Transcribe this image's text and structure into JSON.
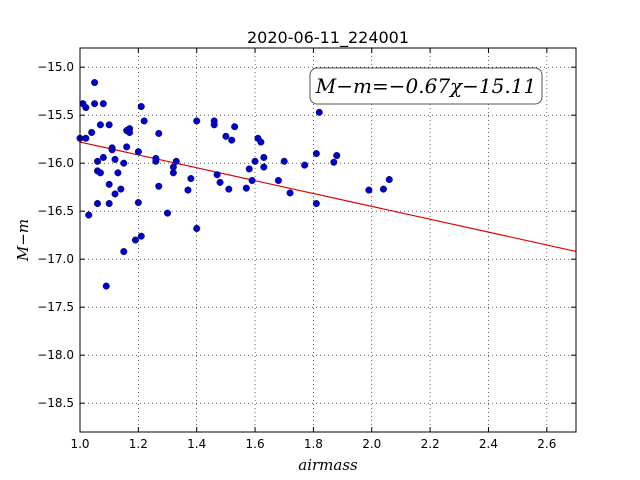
{
  "chart_data": {
    "type": "scatter",
    "title": "2020-06-11_224001",
    "xlabel": "airmass",
    "ylabel": "M−m",
    "xlim": [
      1.0,
      2.7
    ],
    "ylim": [
      -18.8,
      -14.8
    ],
    "x_ticks": [
      1.0,
      1.2,
      1.4,
      1.6,
      1.8,
      2.0,
      2.2,
      2.4,
      2.6
    ],
    "x_tick_labels": [
      "1.0",
      "1.2",
      "1.4",
      "1.6",
      "1.8",
      "2.0",
      "2.2",
      "2.4",
      "2.6"
    ],
    "y_ticks": [
      -15.0,
      -15.5,
      -16.0,
      -16.5,
      -17.0,
      -17.5,
      -18.0,
      -18.5
    ],
    "y_tick_labels": [
      "−15.0",
      "−15.5",
      "−16.0",
      "−16.5",
      "−17.0",
      "−17.5",
      "−18.0",
      "−18.5"
    ],
    "grid": true,
    "annotation": "M−m=−0.67χ−15.11",
    "fit": {
      "slope": -0.67,
      "intercept": -15.11,
      "color": "#dd0000"
    },
    "marker_color": "#0000cc",
    "points": [
      [
        1.0,
        -15.74
      ],
      [
        1.01,
        -15.38
      ],
      [
        1.02,
        -15.42
      ],
      [
        1.02,
        -15.74
      ],
      [
        1.03,
        -16.54
      ],
      [
        1.04,
        -15.68
      ],
      [
        1.05,
        -15.16
      ],
      [
        1.05,
        -15.38
      ],
      [
        1.06,
        -16.08
      ],
      [
        1.06,
        -15.98
      ],
      [
        1.06,
        -16.42
      ],
      [
        1.07,
        -15.6
      ],
      [
        1.07,
        -16.1
      ],
      [
        1.08,
        -15.38
      ],
      [
        1.08,
        -15.94
      ],
      [
        1.09,
        -17.28
      ],
      [
        1.1,
        -15.6
      ],
      [
        1.1,
        -16.22
      ],
      [
        1.1,
        -16.42
      ],
      [
        1.11,
        -15.84
      ],
      [
        1.11,
        -15.86
      ],
      [
        1.12,
        -15.96
      ],
      [
        1.12,
        -16.32
      ],
      [
        1.13,
        -16.1
      ],
      [
        1.14,
        -16.27
      ],
      [
        1.15,
        -16.92
      ],
      [
        1.15,
        -16.0
      ],
      [
        1.16,
        -15.66
      ],
      [
        1.16,
        -15.83
      ],
      [
        1.17,
        -15.64
      ],
      [
        1.17,
        -15.68
      ],
      [
        1.19,
        -16.8
      ],
      [
        1.2,
        -16.41
      ],
      [
        1.2,
        -15.88
      ],
      [
        1.21,
        -15.41
      ],
      [
        1.21,
        -16.76
      ],
      [
        1.22,
        -15.56
      ],
      [
        1.26,
        -15.98
      ],
      [
        1.26,
        -15.95
      ],
      [
        1.27,
        -16.24
      ],
      [
        1.27,
        -15.69
      ],
      [
        1.3,
        -16.52
      ],
      [
        1.32,
        -16.1
      ],
      [
        1.32,
        -16.04
      ],
      [
        1.33,
        -15.98
      ],
      [
        1.37,
        -16.28
      ],
      [
        1.38,
        -16.16
      ],
      [
        1.4,
        -16.68
      ],
      [
        1.4,
        -15.56
      ],
      [
        1.46,
        -15.6
      ],
      [
        1.46,
        -15.56
      ],
      [
        1.47,
        -16.12
      ],
      [
        1.48,
        -16.2
      ],
      [
        1.5,
        -15.72
      ],
      [
        1.51,
        -16.27
      ],
      [
        1.52,
        -15.76
      ],
      [
        1.53,
        -15.62
      ],
      [
        1.57,
        -16.26
      ],
      [
        1.58,
        -16.06
      ],
      [
        1.59,
        -16.18
      ],
      [
        1.6,
        -15.98
      ],
      [
        1.61,
        -15.74
      ],
      [
        1.62,
        -15.78
      ],
      [
        1.63,
        -15.94
      ],
      [
        1.63,
        -16.04
      ],
      [
        1.68,
        -16.18
      ],
      [
        1.7,
        -15.98
      ],
      [
        1.72,
        -16.31
      ],
      [
        1.77,
        -16.02
      ],
      [
        1.81,
        -16.42
      ],
      [
        1.81,
        -15.9
      ],
      [
        1.82,
        -15.47
      ],
      [
        1.87,
        -15.99
      ],
      [
        1.88,
        -15.92
      ],
      [
        1.99,
        -16.28
      ],
      [
        2.04,
        -16.27
      ],
      [
        2.06,
        -16.17
      ]
    ]
  }
}
